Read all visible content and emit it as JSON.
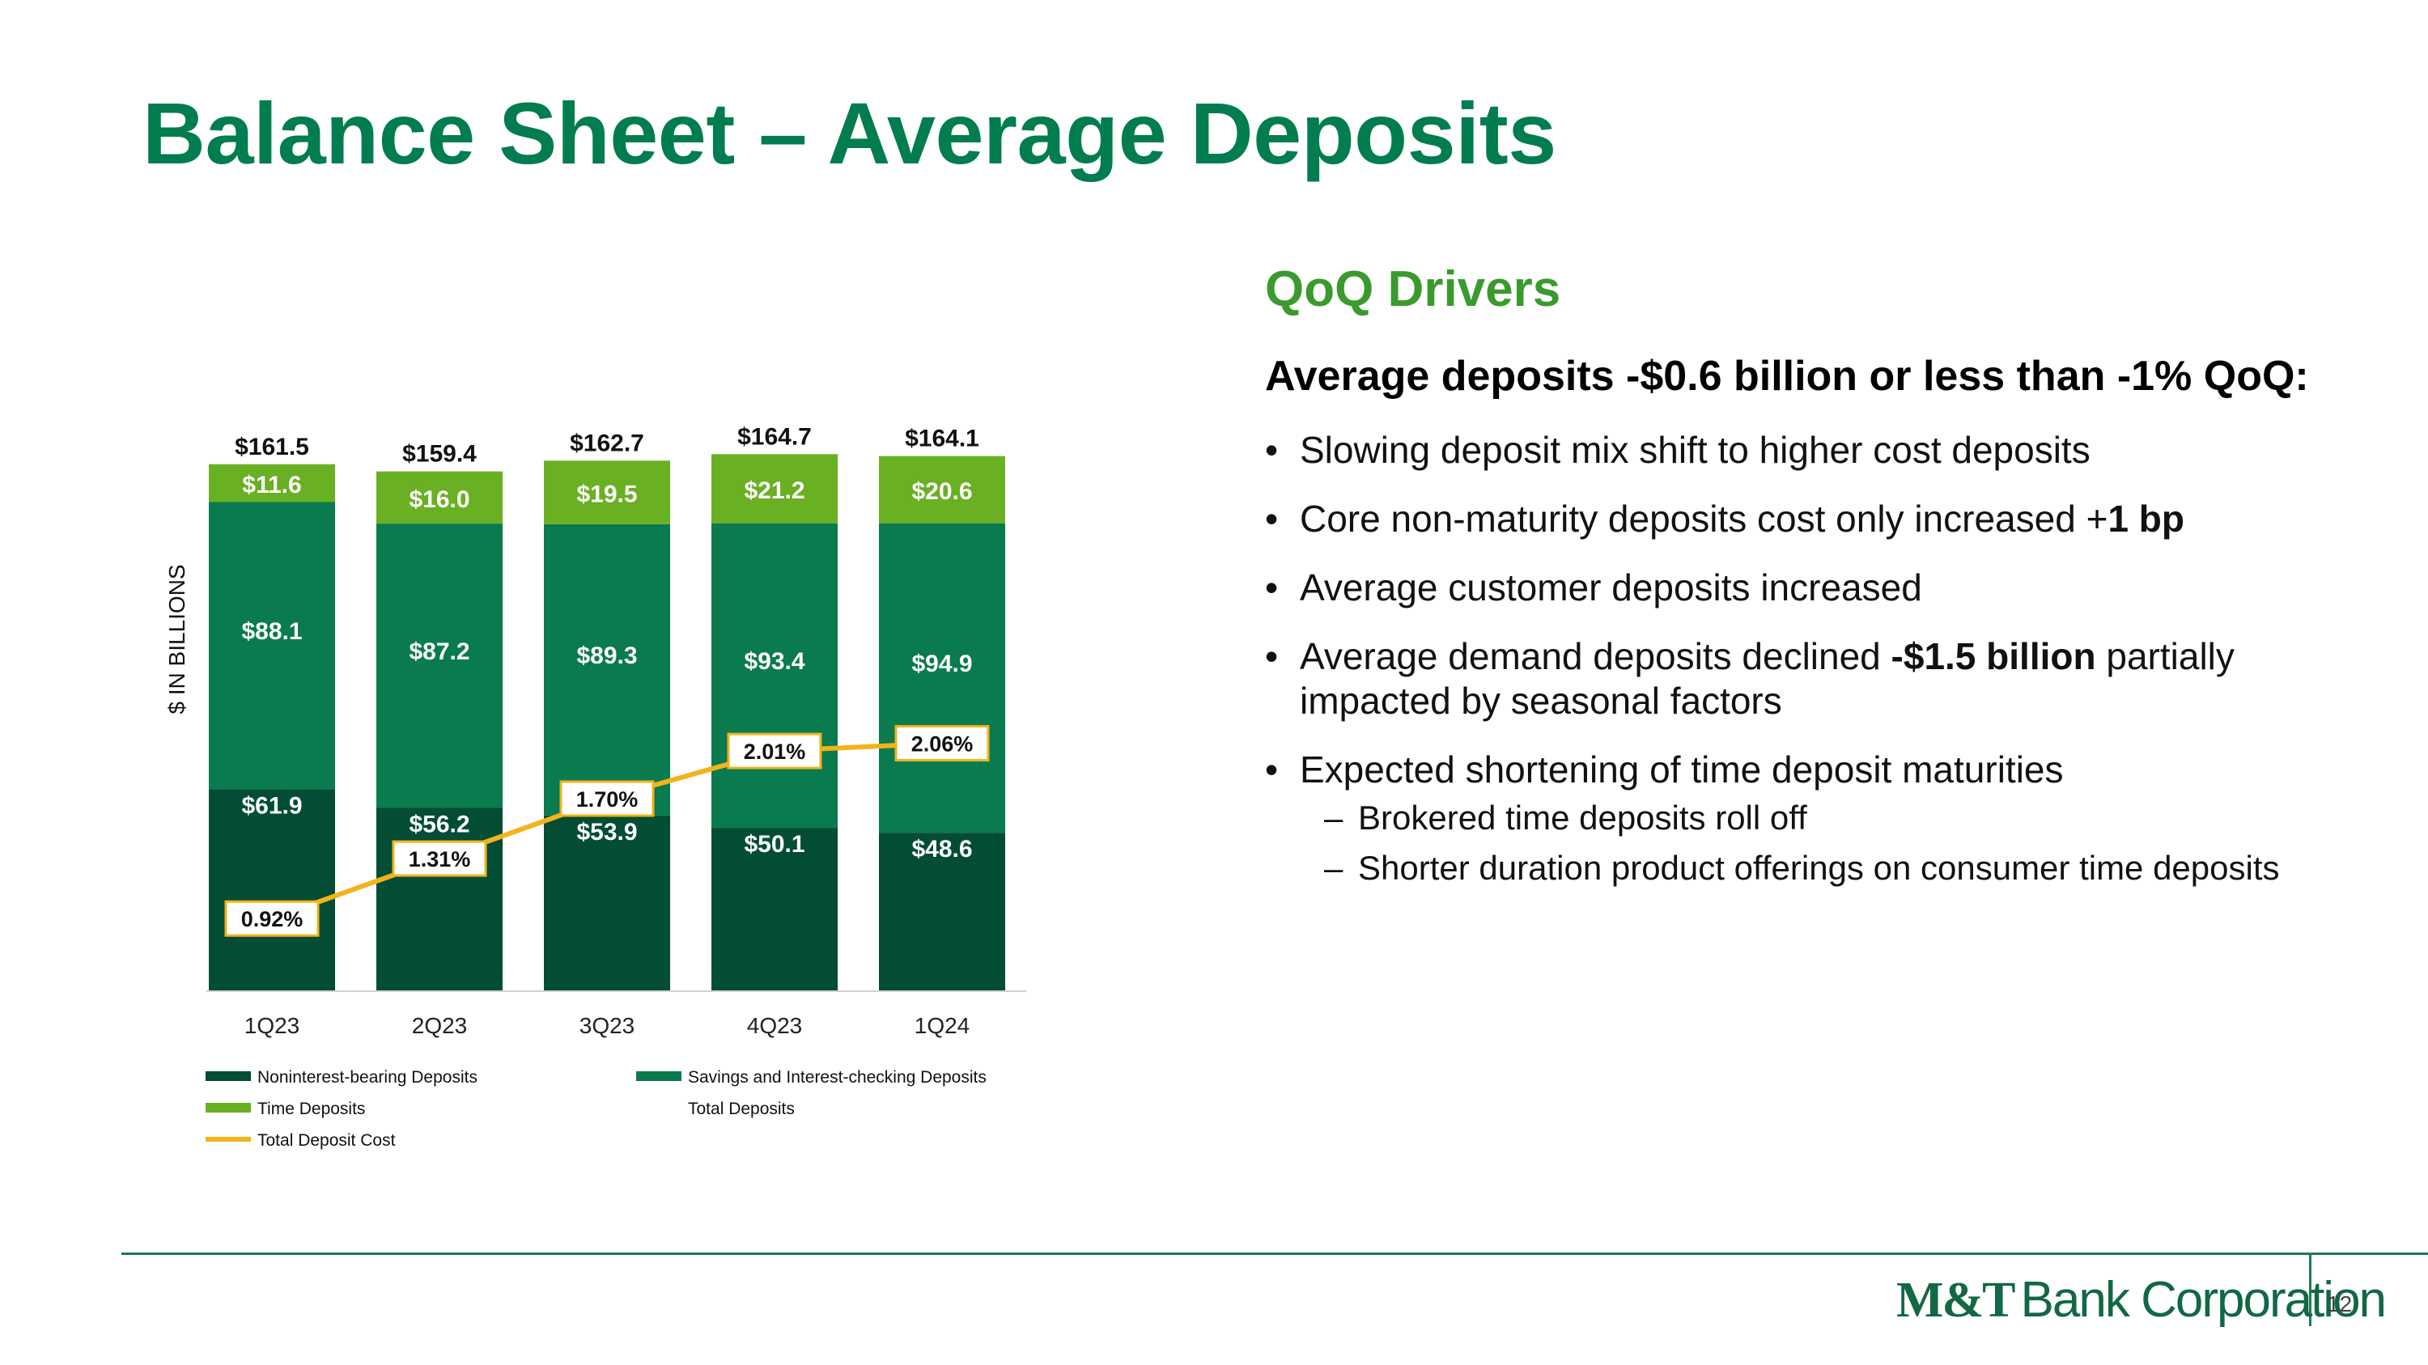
{
  "page": {
    "title": "Balance Sheet – Average Deposits",
    "page_number": "12",
    "logo": {
      "brand": "M&T",
      "rest": "Bank Corporation"
    }
  },
  "drivers": {
    "heading": "QoQ Drivers",
    "summary": "Average deposits -$0.6 billion or less than -1% QoQ:",
    "bullets": [
      {
        "text": "Slowing deposit mix shift to higher cost deposits",
        "bold": ""
      },
      {
        "text": "Core non-maturity deposits cost only increased +",
        "bold": "1 bp"
      },
      {
        "text": "Average customer deposits increased",
        "bold": ""
      },
      {
        "text": "Average demand deposits declined ",
        "bold": "-$1.5 billion",
        "after": " partially impacted by seasonal factors"
      },
      {
        "text": "Expected shortening of time deposit maturities",
        "bold": ""
      }
    ],
    "sub_bullets": [
      "Brokered time deposits roll off",
      "Shorter duration product offerings on consumer time deposits"
    ]
  },
  "chart_data": {
    "type": "bar",
    "stacked": true,
    "ylabel": "$ IN BILLIONS",
    "categories": [
      "1Q23",
      "2Q23",
      "3Q23",
      "4Q23",
      "1Q24"
    ],
    "series": [
      {
        "name": "Noninterest-bearing Deposits",
        "values": [
          61.9,
          56.2,
          53.9,
          50.1,
          48.6
        ],
        "labels": [
          "$61.9",
          "$56.2",
          "$53.9",
          "$50.1",
          "$48.6"
        ],
        "color": "#034d34"
      },
      {
        "name": "Savings and Interest-checking Deposits",
        "values": [
          88.1,
          87.2,
          89.3,
          93.4,
          94.9
        ],
        "labels": [
          "$88.1",
          "$87.2",
          "$89.3",
          "$93.4",
          "$94.9"
        ],
        "color": "#0a7a4f"
      },
      {
        "name": "Time Deposits",
        "values": [
          11.6,
          16.0,
          19.5,
          21.2,
          20.6
        ],
        "labels": [
          "$11.6",
          "$16.0",
          "$19.5",
          "$21.2",
          "$20.6"
        ],
        "color": "#6ab023"
      }
    ],
    "totals": {
      "name": "Total Deposits",
      "values": [
        161.5,
        159.4,
        162.7,
        164.7,
        164.1
      ],
      "labels": [
        "$161.5",
        "$159.4",
        "$162.7",
        "$164.7",
        "$164.1"
      ]
    },
    "line": {
      "name": "Total Deposit Cost",
      "values": [
        0.92,
        1.31,
        1.7,
        2.01,
        2.06
      ],
      "labels": [
        "0.92%",
        "1.31%",
        "1.70%",
        "2.01%",
        "2.06%"
      ],
      "color": "#f2b31b"
    },
    "legend": [
      "Noninterest-bearing Deposits",
      "Savings and Interest-checking Deposits",
      "Time Deposits",
      "Total Deposits",
      "Total Deposit Cost"
    ]
  }
}
